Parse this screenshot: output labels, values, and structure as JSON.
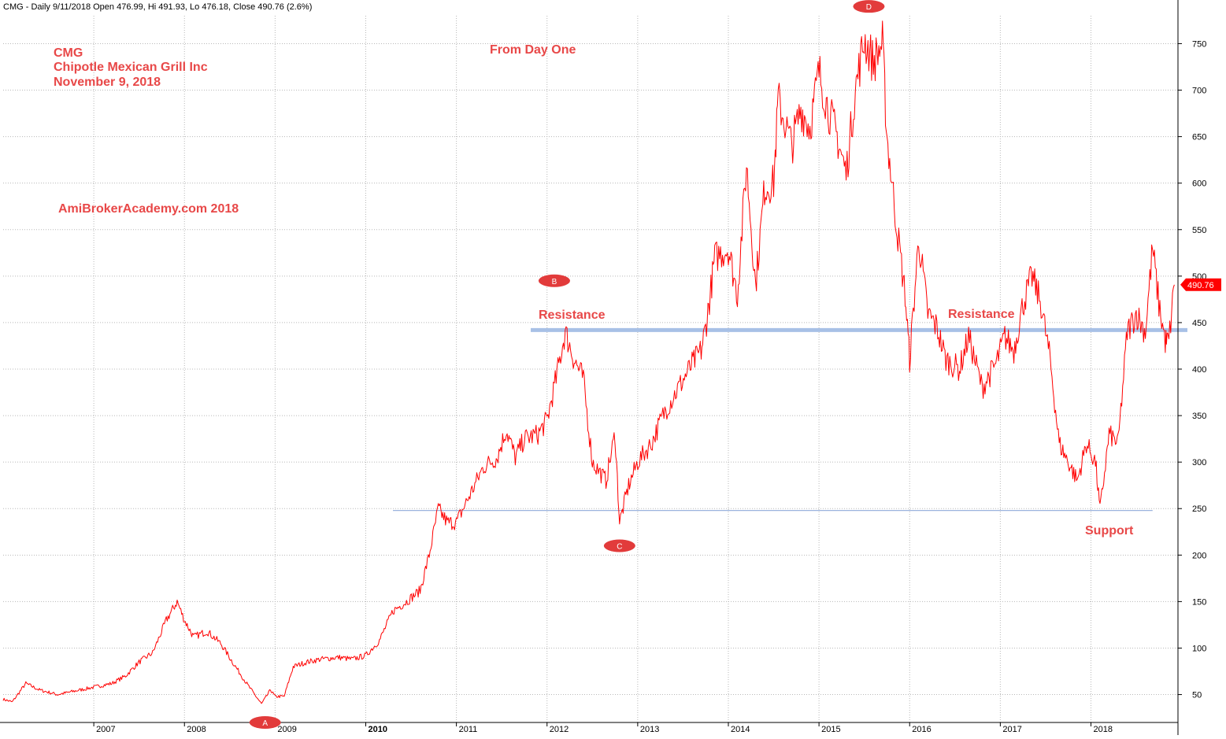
{
  "header": "CMG - Daily 9/11/2018 Open 476.99, Hi 491.93, Lo 476.18, Close 490.76 (2.6%)",
  "annotations": {
    "title_line1": "CMG",
    "title_line2": "Chipotle Mexican Grill Inc",
    "title_line3": "November 9, 2018",
    "from_day_one": "From Day One",
    "watermark": "AmiBrokerAcademy.com  2018",
    "resistance_left": "Resistance",
    "resistance_right": "Resistance",
    "support": "Support",
    "last_price": "490.76"
  },
  "markers": [
    {
      "label": "A",
      "date": "2008.89",
      "price": 20
    },
    {
      "label": "B",
      "date": "2012.08",
      "price": 495
    },
    {
      "label": "C",
      "date": "2012.80",
      "price": 210
    },
    {
      "label": "D",
      "date": "2015.55",
      "price": 790
    }
  ],
  "colors": {
    "price_line": "#ff0000",
    "resistance_line": "#a8c0e6",
    "support_line": "#9bb3dd",
    "annotation_text": "#e84848",
    "marker_fill": "#e23b3b",
    "grid": "#b8b8b8",
    "price_tag": "#ff0000"
  },
  "chart_data": {
    "type": "line",
    "title": "CMG - Daily 9/11/2018",
    "xlabel": "",
    "ylabel": "",
    "x_ticks": [
      "2007",
      "2008",
      "2009",
      "2010",
      "2011",
      "2012",
      "2013",
      "2014",
      "2015",
      "2016",
      "2017",
      "2018"
    ],
    "y_ticks": [
      50,
      100,
      150,
      200,
      250,
      300,
      350,
      400,
      450,
      500,
      550,
      600,
      650,
      700,
      750
    ],
    "ylim": [
      20,
      780
    ],
    "xlim": [
      "2006.0",
      "2018.96"
    ],
    "grid": true,
    "y_axis_side": "right",
    "resistance_level": 442,
    "support_level": 248,
    "last_close": 490.76,
    "series": [
      {
        "points": [
          [
            "2006.00",
            45
          ],
          [
            "2006.10",
            42
          ],
          [
            "2006.25",
            62
          ],
          [
            "2006.40",
            55
          ],
          [
            "2006.60",
            50
          ],
          [
            "2006.85",
            55
          ],
          [
            "2007.00",
            58
          ],
          [
            "2007.20",
            62
          ],
          [
            "2007.35",
            70
          ],
          [
            "2007.50",
            85
          ],
          [
            "2007.65",
            95
          ],
          [
            "2007.80",
            130
          ],
          [
            "2007.92",
            150
          ],
          [
            "2008.00",
            130
          ],
          [
            "2008.10",
            112
          ],
          [
            "2008.25",
            118
          ],
          [
            "2008.40",
            105
          ],
          [
            "2008.55",
            82
          ],
          [
            "2008.70",
            60
          ],
          [
            "2008.85",
            40
          ],
          [
            "2008.95",
            55
          ],
          [
            "2009.00",
            48
          ],
          [
            "2009.10",
            48
          ],
          [
            "2009.20",
            80
          ],
          [
            "2009.35",
            85
          ],
          [
            "2009.50",
            88
          ],
          [
            "2009.70",
            90
          ],
          [
            "2009.85",
            88
          ],
          [
            "2010.00",
            92
          ],
          [
            "2010.15",
            108
          ],
          [
            "2010.30",
            140
          ],
          [
            "2010.45",
            150
          ],
          [
            "2010.60",
            162
          ],
          [
            "2010.70",
            200
          ],
          [
            "2010.80",
            250
          ],
          [
            "2010.90",
            235
          ],
          [
            "2011.00",
            235
          ],
          [
            "2011.15",
            265
          ],
          [
            "2011.30",
            295
          ],
          [
            "2011.45",
            305
          ],
          [
            "2011.55",
            335
          ],
          [
            "2011.65",
            305
          ],
          [
            "2011.75",
            325
          ],
          [
            "2011.90",
            330
          ],
          [
            "2012.00",
            345
          ],
          [
            "2012.10",
            390
          ],
          [
            "2012.20",
            440
          ],
          [
            "2012.30",
            410
          ],
          [
            "2012.40",
            390
          ],
          [
            "2012.50",
            300
          ],
          [
            "2012.65",
            280
          ],
          [
            "2012.75",
            330
          ],
          [
            "2012.80",
            235
          ],
          [
            "2012.90",
            275
          ],
          [
            "2013.00",
            300
          ],
          [
            "2013.15",
            320
          ],
          [
            "2013.30",
            355
          ],
          [
            "2013.45",
            380
          ],
          [
            "2013.60",
            405
          ],
          [
            "2013.70",
            420
          ],
          [
            "2013.75",
            445
          ],
          [
            "2013.80",
            480
          ],
          [
            "2013.85",
            520
          ],
          [
            "2014.00",
            530
          ],
          [
            "2014.10",
            480
          ],
          [
            "2014.20",
            620
          ],
          [
            "2014.30",
            490
          ],
          [
            "2014.40",
            595
          ],
          [
            "2014.50",
            600
          ],
          [
            "2014.55",
            690
          ],
          [
            "2014.70",
            640
          ],
          [
            "2014.80",
            680
          ],
          [
            "2014.90",
            660
          ],
          [
            "2015.00",
            720
          ],
          [
            "2015.10",
            680
          ],
          [
            "2015.20",
            650
          ],
          [
            "2015.30",
            610
          ],
          [
            "2015.40",
            700
          ],
          [
            "2015.50",
            755
          ],
          [
            "2015.60",
            730
          ],
          [
            "2015.70",
            750
          ],
          [
            "2015.75",
            650
          ],
          [
            "2015.85",
            560
          ],
          [
            "2015.95",
            480
          ],
          [
            "2016.00",
            410
          ],
          [
            "2016.10",
            540
          ],
          [
            "2016.20",
            460
          ],
          [
            "2016.30",
            445
          ],
          [
            "2016.40",
            410
          ],
          [
            "2016.55",
            400
          ],
          [
            "2016.65",
            435
          ],
          [
            "2016.80",
            380
          ],
          [
            "2016.95",
            405
          ],
          [
            "2017.05",
            435
          ],
          [
            "2017.15",
            420
          ],
          [
            "2017.25",
            470
          ],
          [
            "2017.35",
            500
          ],
          [
            "2017.45",
            470
          ],
          [
            "2017.55",
            410
          ],
          [
            "2017.65",
            320
          ],
          [
            "2017.75",
            300
          ],
          [
            "2017.85",
            280
          ],
          [
            "2017.95",
            320
          ],
          [
            "2018.05",
            300
          ],
          [
            "2018.10",
            248
          ],
          [
            "2018.20",
            330
          ],
          [
            "2018.30",
            320
          ],
          [
            "2018.40",
            440
          ],
          [
            "2018.50",
            460
          ],
          [
            "2018.60",
            440
          ],
          [
            "2018.68",
            530
          ],
          [
            "2018.75",
            470
          ],
          [
            "2018.82",
            430
          ],
          [
            "2018.86",
            430
          ],
          [
            "2018.92",
            490.76
          ]
        ]
      }
    ]
  }
}
